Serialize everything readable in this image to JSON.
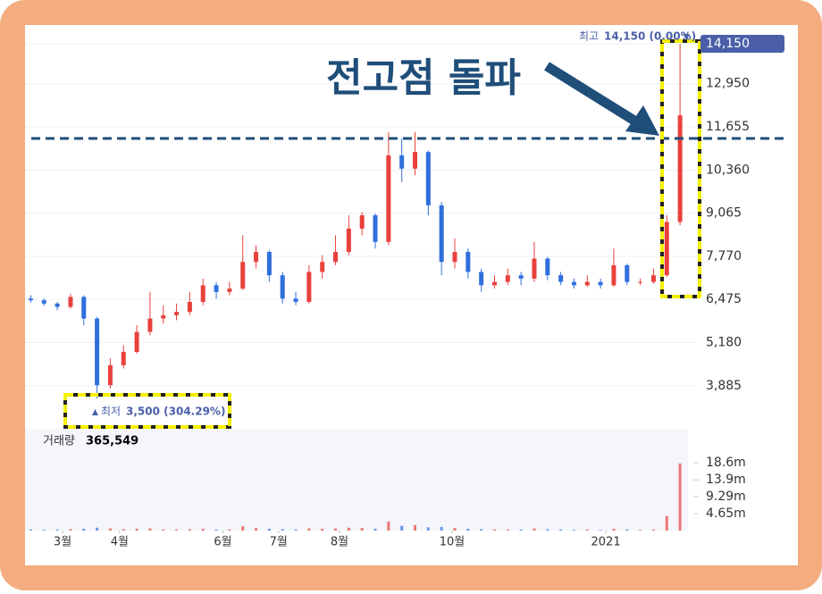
{
  "chart_data": {
    "type": "candlestick",
    "annotation": "전고점 돌파",
    "max_label": "최고",
    "max_text": "14,150 (0.00%)",
    "min_label": "최저",
    "min_text": "3,500 (304.29%)",
    "volume_label": "거래량",
    "volume_text": "365,549",
    "up_color": "#e8413c",
    "down_color": "#2f6fdc",
    "open": [
      6500,
      6450,
      6350,
      6250,
      6550,
      5900,
      3900,
      4500,
      4900,
      5500,
      5900,
      6000,
      6100,
      6400,
      6900,
      6700,
      6800,
      7600,
      7900,
      7200,
      6500,
      6400,
      7300,
      7600,
      7900,
      8600,
      9000,
      8200,
      10800,
      10400,
      10900,
      9300,
      7600,
      7900,
      7300,
      6900,
      7000,
      7200,
      7100,
      7700,
      7200,
      7000,
      6900,
      7000,
      6900,
      7500,
      7000,
      7000,
      7200,
      8800
    ],
    "high": [
      6600,
      6500,
      6400,
      6650,
      6600,
      5950,
      4700,
      5100,
      5700,
      6700,
      6300,
      6350,
      6700,
      7100,
      7000,
      7000,
      8400,
      8100,
      7950,
      7300,
      6700,
      7500,
      7800,
      8400,
      9000,
      9100,
      9050,
      11500,
      11300,
      11500,
      10950,
      9400,
      8300,
      8000,
      7400,
      7200,
      7400,
      7300,
      8200,
      7750,
      7300,
      7100,
      7200,
      7100,
      8000,
      7550,
      7100,
      7400,
      9000,
      14150
    ],
    "low": [
      6380,
      6280,
      6150,
      6200,
      5700,
      3500,
      3800,
      4400,
      4850,
      5400,
      5750,
      5850,
      6000,
      6300,
      6500,
      6600,
      6750,
      7400,
      7000,
      6350,
      6300,
      6350,
      7100,
      7500,
      7800,
      8400,
      8000,
      8100,
      10000,
      10200,
      9000,
      7200,
      7400,
      7100,
      6700,
      6800,
      6900,
      6900,
      7000,
      7050,
      6900,
      6800,
      6850,
      6800,
      6850,
      6900,
      6900,
      6950,
      7150,
      8700
    ],
    "close": [
      6450,
      6350,
      6250,
      6550,
      5900,
      3900,
      4500,
      4900,
      5500,
      5900,
      6000,
      6100,
      6400,
      6900,
      6700,
      6800,
      7600,
      7900,
      7200,
      6500,
      6400,
      7300,
      7600,
      7900,
      8600,
      9000,
      8200,
      10800,
      10400,
      10900,
      9300,
      7600,
      7900,
      7300,
      6900,
      7000,
      7200,
      7100,
      7700,
      7200,
      7000,
      6900,
      7000,
      6900,
      7500,
      7000,
      7000,
      7200,
      8800,
      12000
    ],
    "volume": [
      0.3,
      0.2,
      0.3,
      0.4,
      0.5,
      0.8,
      0.6,
      0.4,
      0.5,
      0.6,
      0.3,
      0.3,
      0.4,
      0.5,
      0.3,
      0.3,
      1.2,
      0.7,
      0.5,
      0.4,
      0.3,
      0.6,
      0.5,
      0.6,
      0.8,
      0.7,
      0.5,
      2.5,
      1.3,
      1.5,
      0.9,
      1.0,
      0.7,
      0.5,
      0.4,
      0.3,
      0.3,
      0.3,
      0.6,
      0.4,
      0.3,
      0.2,
      0.3,
      0.2,
      0.5,
      0.3,
      0.2,
      0.3,
      4.0,
      18.4
    ],
    "xlim": [
      -0.3,
      49.6
    ],
    "xticks": [
      {
        "value": 2.4,
        "label": "3월"
      },
      {
        "value": 6.7,
        "label": "4월"
      },
      {
        "value": 14.5,
        "label": "6월"
      },
      {
        "value": 18.7,
        "label": "7월"
      },
      {
        "value": 23.3,
        "label": "8월"
      },
      {
        "value": 31.8,
        "label": "10월"
      },
      {
        "value": 43.4,
        "label": "2021"
      }
    ],
    "ylim": [
      2860,
      14525
    ],
    "yticks": [
      {
        "value": 14150,
        "label": "14,150"
      },
      {
        "value": 12950,
        "label": "12,950"
      },
      {
        "value": 11655,
        "label": "11,655"
      },
      {
        "value": 10360,
        "label": "10,360"
      },
      {
        "value": 9065,
        "label": "9,065"
      },
      {
        "value": 7770,
        "label": "7,770"
      },
      {
        "value": 6475,
        "label": "6,475"
      },
      {
        "value": 5180,
        "label": "5,180"
      },
      {
        "value": 3885,
        "label": "3,885"
      }
    ],
    "volume_ylim": [
      0,
      27.9
    ],
    "volume_ticks": [
      {
        "value": 18.6,
        "label": "18.6m"
      },
      {
        "value": 13.9,
        "label": "13.9m"
      },
      {
        "value": 9.29,
        "label": "9.29m"
      },
      {
        "value": 4.65,
        "label": "4.65m"
      }
    ],
    "grid": true
  }
}
